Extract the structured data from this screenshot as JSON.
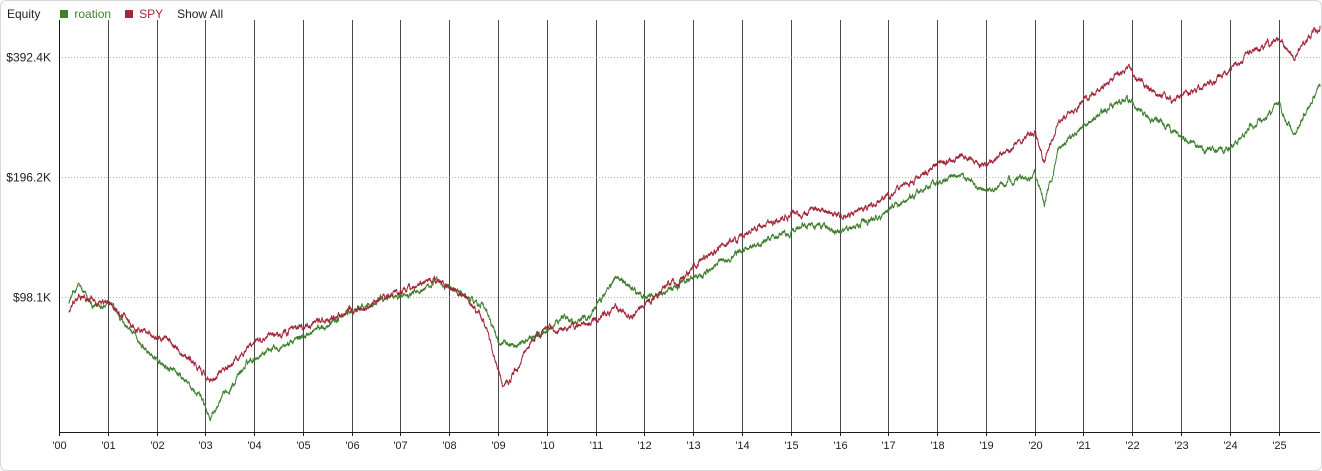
{
  "legend": {
    "title": "Equity",
    "show_all_label": "Show All"
  },
  "chart_data": {
    "type": "line",
    "title": "",
    "xlabel": "",
    "ylabel": "",
    "x_range": [
      2000.0,
      2025.85
    ],
    "ylim": [
      45000,
      480000
    ],
    "y_scale": "log",
    "y_ticks": [
      {
        "value": 98100,
        "label": "$98.1K"
      },
      {
        "value": 196200,
        "label": "$196.2K"
      },
      {
        "value": 392400,
        "label": "$392.4K"
      }
    ],
    "x_ticks": [
      {
        "value": 2000,
        "label": "'00"
      },
      {
        "value": 2001,
        "label": "'01"
      },
      {
        "value": 2002,
        "label": "'02"
      },
      {
        "value": 2003,
        "label": "'03"
      },
      {
        "value": 2004,
        "label": "'04"
      },
      {
        "value": 2005,
        "label": "'05"
      },
      {
        "value": 2006,
        "label": "'06"
      },
      {
        "value": 2007,
        "label": "'07"
      },
      {
        "value": 2008,
        "label": "'08"
      },
      {
        "value": 2009,
        "label": "'09"
      },
      {
        "value": 2010,
        "label": "'10"
      },
      {
        "value": 2011,
        "label": "'11"
      },
      {
        "value": 2012,
        "label": "'12"
      },
      {
        "value": 2013,
        "label": "'13"
      },
      {
        "value": 2014,
        "label": "'14"
      },
      {
        "value": 2015,
        "label": "'15"
      },
      {
        "value": 2016,
        "label": "'16"
      },
      {
        "value": 2017,
        "label": "'17"
      },
      {
        "value": 2018,
        "label": "'18"
      },
      {
        "value": 2019,
        "label": "'19"
      },
      {
        "value": 2020,
        "label": "'20"
      },
      {
        "value": 2021,
        "label": "'21"
      },
      {
        "value": 2022,
        "label": "'22"
      },
      {
        "value": 2023,
        "label": "'23"
      },
      {
        "value": 2024,
        "label": "'24"
      },
      {
        "value": 2025,
        "label": "'25"
      }
    ],
    "grid": {
      "vertical": true,
      "horizontal": "dotted"
    },
    "legend_position": "top-left",
    "series": [
      {
        "name": "roation",
        "color": "#3f7f2e",
        "x": [
          2000.2,
          2000.4,
          2000.7,
          2001.0,
          2001.3,
          2001.7,
          2002.0,
          2002.3,
          2002.6,
          2002.9,
          2003.1,
          2003.5,
          2003.9,
          2004.3,
          2004.7,
          2005.0,
          2005.5,
          2006.0,
          2006.4,
          2006.8,
          2007.3,
          2007.7,
          2008.0,
          2008.3,
          2008.7,
          2009.0,
          2009.3,
          2009.7,
          2010.0,
          2010.3,
          2010.6,
          2011.0,
          2011.4,
          2011.7,
          2012.0,
          2012.5,
          2013.0,
          2013.5,
          2014.0,
          2014.5,
          2015.0,
          2015.5,
          2016.0,
          2016.5,
          2017.0,
          2017.5,
          2018.0,
          2018.5,
          2019.0,
          2019.5,
          2020.0,
          2020.2,
          2020.5,
          2021.0,
          2021.5,
          2021.9,
          2022.3,
          2022.8,
          2023.2,
          2023.6,
          2024.0,
          2024.4,
          2024.8,
          2025.0,
          2025.3,
          2025.85
        ],
        "values": [
          96000,
          105000,
          92000,
          96000,
          86000,
          74000,
          68000,
          64000,
          60000,
          55000,
          49000,
          58000,
          68000,
          73000,
          75000,
          78000,
          84000,
          90000,
          94000,
          98000,
          102000,
          106000,
          104000,
          99000,
          94000,
          76000,
          74000,
          77000,
          81000,
          88000,
          85000,
          92000,
          110000,
          104000,
          98000,
          102000,
          110000,
          118000,
          128000,
          136000,
          143000,
          150000,
          142000,
          150000,
          162000,
          176000,
          190000,
          198000,
          180000,
          192000,
          200000,
          168000,
          232000,
          262000,
          290000,
          312000,
          278000,
          258000,
          238000,
          230000,
          230000,
          262000,
          278000,
          300000,
          250000,
          330000
        ]
      },
      {
        "name": "SPY",
        "color": "#a3263a",
        "x": [
          2000.2,
          2000.4,
          2000.7,
          2001.0,
          2001.3,
          2001.7,
          2002.0,
          2002.3,
          2002.6,
          2002.9,
          2003.1,
          2003.5,
          2003.9,
          2004.3,
          2004.7,
          2005.0,
          2005.5,
          2006.0,
          2006.4,
          2006.8,
          2007.3,
          2007.7,
          2008.0,
          2008.3,
          2008.7,
          2009.0,
          2009.15,
          2009.4,
          2009.7,
          2010.0,
          2010.3,
          2010.6,
          2011.0,
          2011.4,
          2011.7,
          2012.0,
          2012.5,
          2013.0,
          2013.5,
          2014.0,
          2014.5,
          2015.0,
          2015.5,
          2016.0,
          2016.5,
          2017.0,
          2017.5,
          2018.0,
          2018.5,
          2019.0,
          2019.5,
          2020.0,
          2020.2,
          2020.5,
          2021.0,
          2021.5,
          2021.9,
          2022.3,
          2022.8,
          2023.2,
          2023.6,
          2024.0,
          2024.4,
          2024.8,
          2025.0,
          2025.3,
          2025.85
        ],
        "values": [
          90000,
          98000,
          96000,
          95000,
          88000,
          81000,
          78000,
          76000,
          70000,
          64000,
          60000,
          66000,
          74000,
          78000,
          80000,
          82000,
          86000,
          90000,
          94000,
          100000,
          104000,
          108000,
          104000,
          98000,
          86000,
          64000,
          58000,
          66000,
          76000,
          82000,
          80000,
          82000,
          86000,
          92000,
          88000,
          94000,
          104000,
          116000,
          130000,
          140000,
          150000,
          158000,
          163000,
          156000,
          162000,
          176000,
          192000,
          210000,
          222000,
          210000,
          232000,
          256000,
          215000,
          270000,
          300000,
          340000,
          370000,
          330000,
          305000,
          318000,
          335000,
          365000,
          402000,
          420000,
          440000,
          390000,
          470000
        ]
      }
    ]
  }
}
